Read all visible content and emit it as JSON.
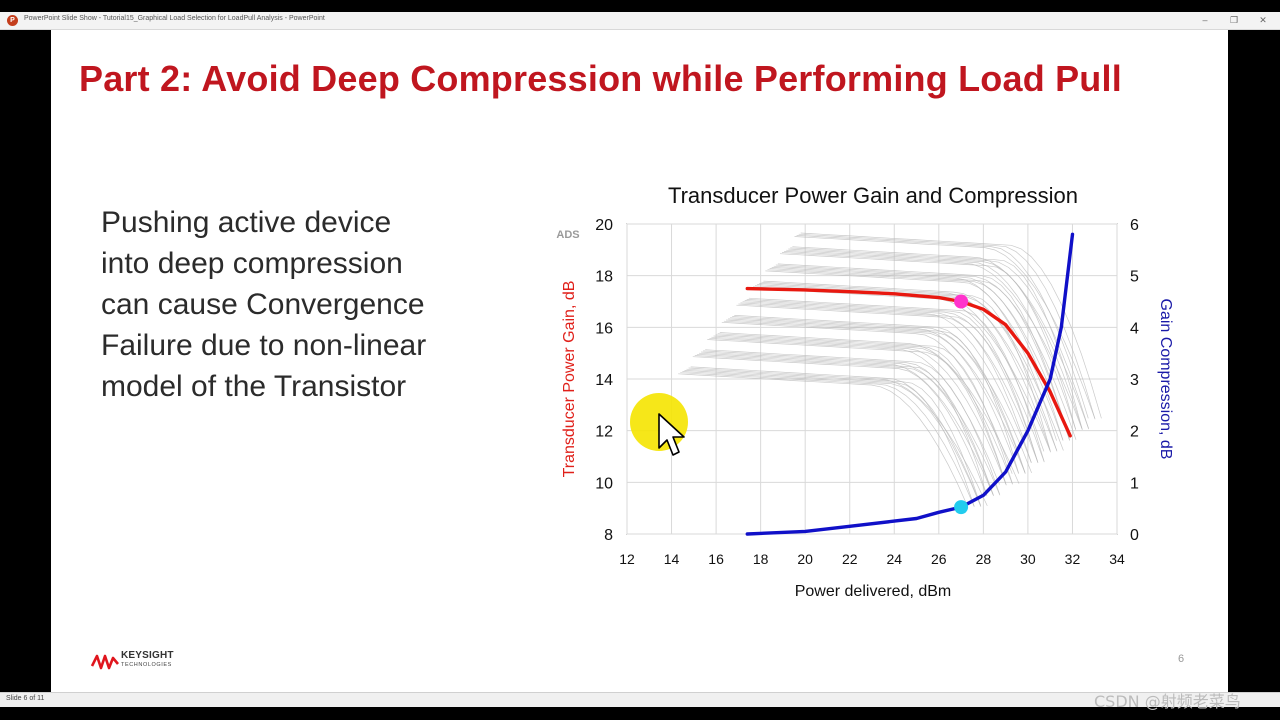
{
  "window": {
    "title": "PowerPoint Slide Show  -  Tutorial15_Graphical Load Selection for LoadPull Analysis - PowerPoint",
    "app_icon": "P",
    "controls": [
      "‒",
      "❐",
      "✕"
    ]
  },
  "slide": {
    "title": "Part 2: Avoid Deep Compression while Performing Load Pull",
    "body_lines": [
      "Pushing active device",
      "into deep compression",
      "can cause Convergence",
      "Failure due to non-linear",
      "model of the Transistor"
    ],
    "page_number": "6",
    "logo": {
      "name": "KEYSIGHT",
      "sub": "TECHNOLOGIES"
    },
    "title_color": "#c0161f"
  },
  "status": {
    "slide_info": "Slide 6 of 11"
  },
  "watermark": "CSDN @射频老菜鸟",
  "chart_data": {
    "type": "line",
    "title": "Transducer Power Gain and Compression",
    "badge": "ADS",
    "xlabel": "Power delivered, dBm",
    "ylabel_left": "Transducer Power Gain, dB",
    "ylabel_right": "Gain Compression, dB",
    "xlim": [
      12,
      34
    ],
    "ylim_left": [
      8,
      20
    ],
    "ylim_right": [
      0,
      6
    ],
    "x_ticks": [
      12,
      14,
      16,
      18,
      20,
      22,
      24,
      26,
      28,
      30,
      32,
      34
    ],
    "y_left_ticks": [
      8,
      10,
      12,
      14,
      16,
      18,
      20
    ],
    "y_right_ticks": [
      0,
      1,
      2,
      3,
      4,
      5,
      6
    ],
    "grid": true,
    "series": [
      {
        "axis": "left",
        "color": "#e8180f",
        "x": [
          17.4,
          20,
          22,
          24,
          26,
          27,
          28,
          29,
          30,
          31,
          31.9
        ],
        "y": [
          17.5,
          17.45,
          17.38,
          17.3,
          17.15,
          17.0,
          16.7,
          16.1,
          15.0,
          13.5,
          11.8
        ]
      },
      {
        "axis": "right",
        "color": "#1010c8",
        "x": [
          17.4,
          20,
          22,
          24,
          25,
          26,
          27,
          28,
          29,
          30,
          31,
          31.5,
          32
        ],
        "y": [
          0,
          0.05,
          0.15,
          0.25,
          0.3,
          0.42,
          0.52,
          0.75,
          1.2,
          2.0,
          3.0,
          4.0,
          5.8
        ]
      }
    ],
    "markers": [
      {
        "axis": "left",
        "x": 27.0,
        "y": 17.0,
        "color": "#ff33cc"
      },
      {
        "axis": "right",
        "x": 27.0,
        "y": 0.52,
        "color": "#22ccee"
      }
    ],
    "background_curve_color": "#b8b8b8",
    "cursor_highlight_color": "#f5e400"
  }
}
